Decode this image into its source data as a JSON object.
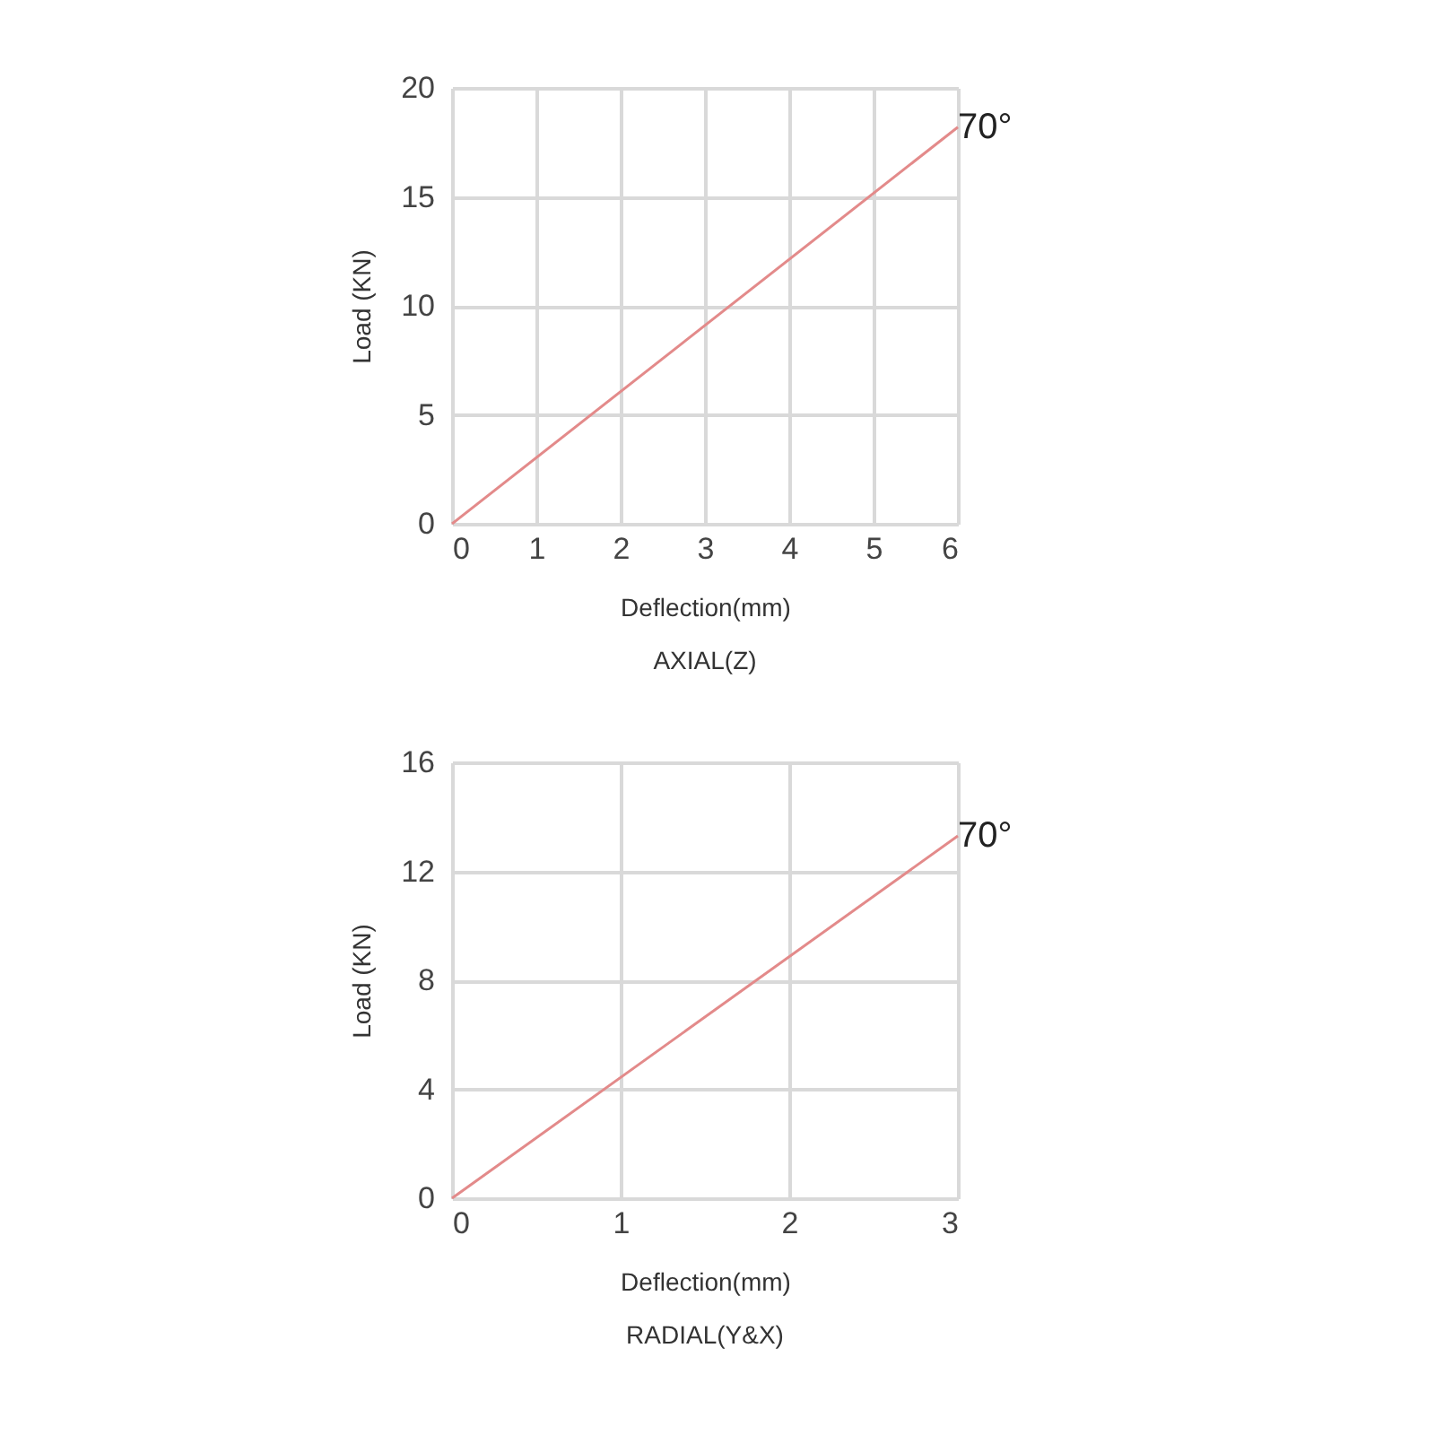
{
  "chart_data": [
    {
      "type": "line",
      "xlabel": "Deflection(mm)",
      "ylabel": "Load (KN)",
      "annotations": [
        "AXIAL(Z)"
      ],
      "series": [
        {
          "name": "70°",
          "color": "#e38a8a",
          "x": [
            0,
            6
          ],
          "values": [
            0,
            18.2
          ]
        }
      ],
      "xlim": [
        0,
        6
      ],
      "xticks": [
        0,
        1,
        2,
        3,
        4,
        5,
        6
      ],
      "ylim": [
        0,
        20
      ],
      "yticks": [
        0,
        5,
        10,
        15,
        20
      ],
      "grid": true
    },
    {
      "type": "line",
      "xlabel": "Deflection(mm)",
      "ylabel": "Load (KN)",
      "annotations": [
        "RADIAL(Y&X)"
      ],
      "series": [
        {
          "name": "70°",
          "color": "#e38a8a",
          "x": [
            0,
            3
          ],
          "values": [
            0,
            13.3
          ]
        }
      ],
      "xlim": [
        0,
        3
      ],
      "xticks": [
        0,
        1,
        2,
        3
      ],
      "ylim": [
        0,
        16
      ],
      "yticks": [
        0,
        4,
        8,
        12,
        16
      ],
      "grid": true
    }
  ]
}
